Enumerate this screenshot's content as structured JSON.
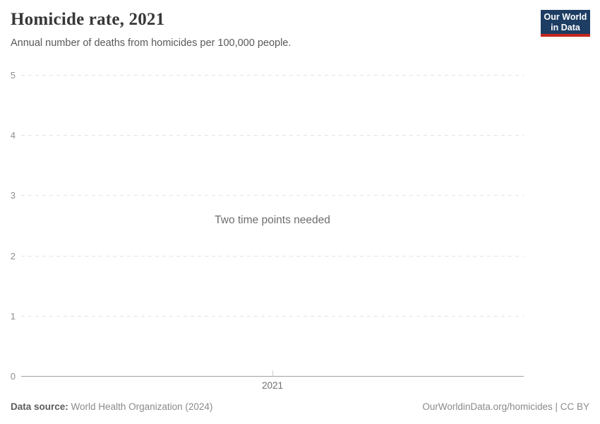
{
  "header": {
    "title": "Homicide rate, 2021",
    "subtitle": "Annual number of deaths from homicides per 100,000 people.",
    "logo": {
      "line1": "Our World",
      "line2": "in Data"
    }
  },
  "chart_data": {
    "type": "line",
    "title": "Homicide rate, 2021",
    "subtitle": "Annual number of deaths from homicides per 100,000 people.",
    "series": [],
    "categories": [
      "2021"
    ],
    "x_ticks": [
      "2021"
    ],
    "y_ticks": [
      0,
      1,
      2,
      3,
      4,
      5
    ],
    "ylim": [
      0,
      5
    ],
    "xlabel": "",
    "ylabel": "",
    "grid": true,
    "legend": "none",
    "empty_state_message": "Two time points needed"
  },
  "message": "Two time points needed",
  "footer": {
    "datasource_label": "Data source:",
    "datasource_value": "World Health Organization (2024)",
    "link": "OurWorldinData.org/homicides",
    "separator": " | ",
    "license": "CC BY"
  },
  "colors": {
    "logo_background": "#1d3d63",
    "logo_accent": "#c5281c",
    "title": "#383838",
    "subtitle": "#595959",
    "axis_tick_label": "#8f8f8f",
    "x_tick_label": "#6f6f6f",
    "gridline": "#e4e4e4",
    "axis_line": "#a1a1a1",
    "message": "#6e6e6e",
    "footer_text": "#8a8a8a"
  }
}
